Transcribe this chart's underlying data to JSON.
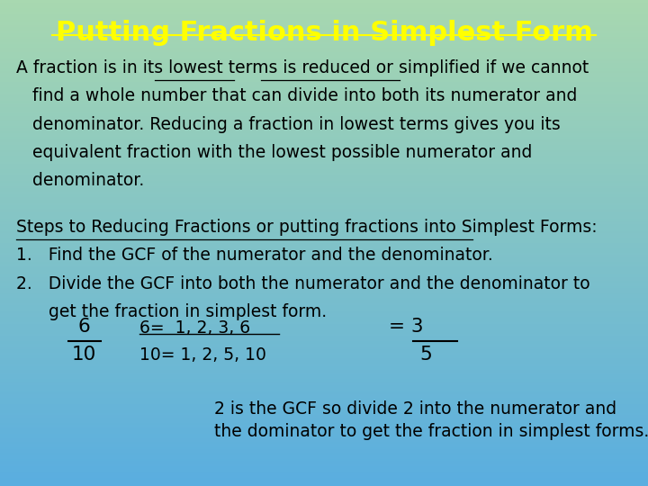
{
  "title": "Putting Fractions in Simplest Form",
  "title_color": "#FFFF00",
  "title_fontsize": 22,
  "bg_color_top": "#5aaee0",
  "bg_color_bottom": "#a8d8b0",
  "text_color": "#000000",
  "body_fontsize": 13.5,
  "para1_line1": "A fraction is in its lowest terms is reduced or simplified if we cannot",
  "para1_line2": "   find a whole number that can divide into both its numerator and",
  "para1_line3": "   denominator. Reducing a fraction in lowest terms gives you its",
  "para1_line4": "   equivalent fraction with the lowest possible numerator and",
  "para1_line5": "   denominator.",
  "steps_header": "Steps to Reducing Fractions or putting fractions into Simplest Forms:",
  "step1": "1.   Find the GCF of the numerator and the denominator.",
  "step2_line1": "2.   Divide the GCF into both the numerator and the denominator to",
  "step2_line2": "      get the fraction in simplest form.",
  "gcf_note_line1": "2 is the GCF so divide 2 into the numerator and",
  "gcf_note_line2": "the dominator to get the fraction in simplest forms."
}
